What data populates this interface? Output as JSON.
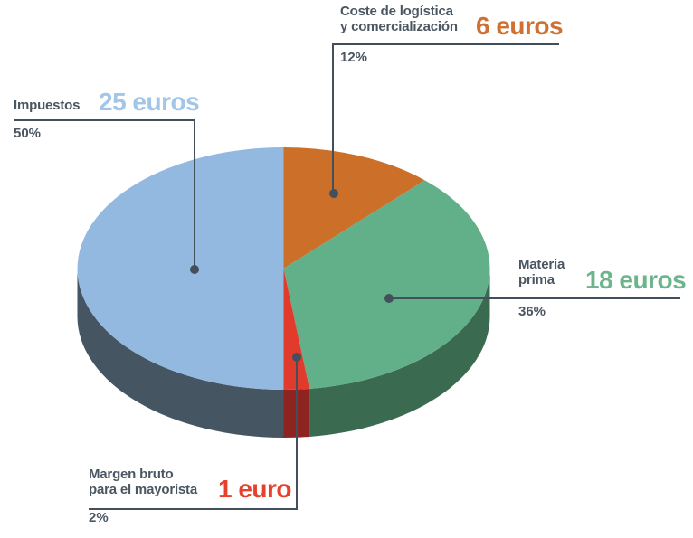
{
  "background": "#ffffff",
  "chart_data": {
    "type": "pie",
    "style": "3d",
    "title": "",
    "unit": "euros",
    "direction": "clockwise",
    "start_angle_deg": 0,
    "legend_position": "callout-labels",
    "slices": [
      {
        "id": "coste-logistica",
        "label": "Coste de logística y comercialización",
        "value": 6,
        "value_label": "6 euros",
        "percent": 12,
        "percent_label": "12%",
        "color_top": "#cc6f29",
        "color_side": "#9a5420"
      },
      {
        "id": "materia-prima",
        "label": "Materia prima",
        "value": 18,
        "value_label": "18 euros",
        "percent": 36,
        "percent_label": "36%",
        "color_top": "#62b089",
        "color_side": "#3a6b50"
      },
      {
        "id": "margen-bruto",
        "label": "Margen bruto para el mayorista",
        "value": 1,
        "value_label": "1 euro",
        "percent": 2,
        "percent_label": "2%",
        "color_top": "#e13b2d",
        "color_side": "#8e2420"
      },
      {
        "id": "impuestos",
        "label": "Impuestos",
        "value": 25,
        "value_label": "25 euros",
        "percent": 50,
        "percent_label": "50%",
        "color_top": "#93b9e1",
        "color_side": "#455662"
      }
    ]
  },
  "annotations": {
    "text_color": "#4a5662",
    "line_color": "#43505c",
    "coste": {
      "line1": "Coste de logística",
      "line2": "y comercialización",
      "value": "6 euros",
      "percent": "12%",
      "value_color": "#cf7130"
    },
    "materia": {
      "line1": "Materia",
      "line2": "prima",
      "value": "18 euros",
      "percent": "36%",
      "value_color": "#6cb48c"
    },
    "margen": {
      "line1": "Margen bruto",
      "line2": "para el mayorista",
      "value": "1 euro",
      "percent": "2%",
      "value_color": "#e6402e"
    },
    "impuestos": {
      "line1": "Impuestos",
      "value": "25 euros",
      "percent": "50%",
      "value_color": "#a2c6e8"
    }
  }
}
